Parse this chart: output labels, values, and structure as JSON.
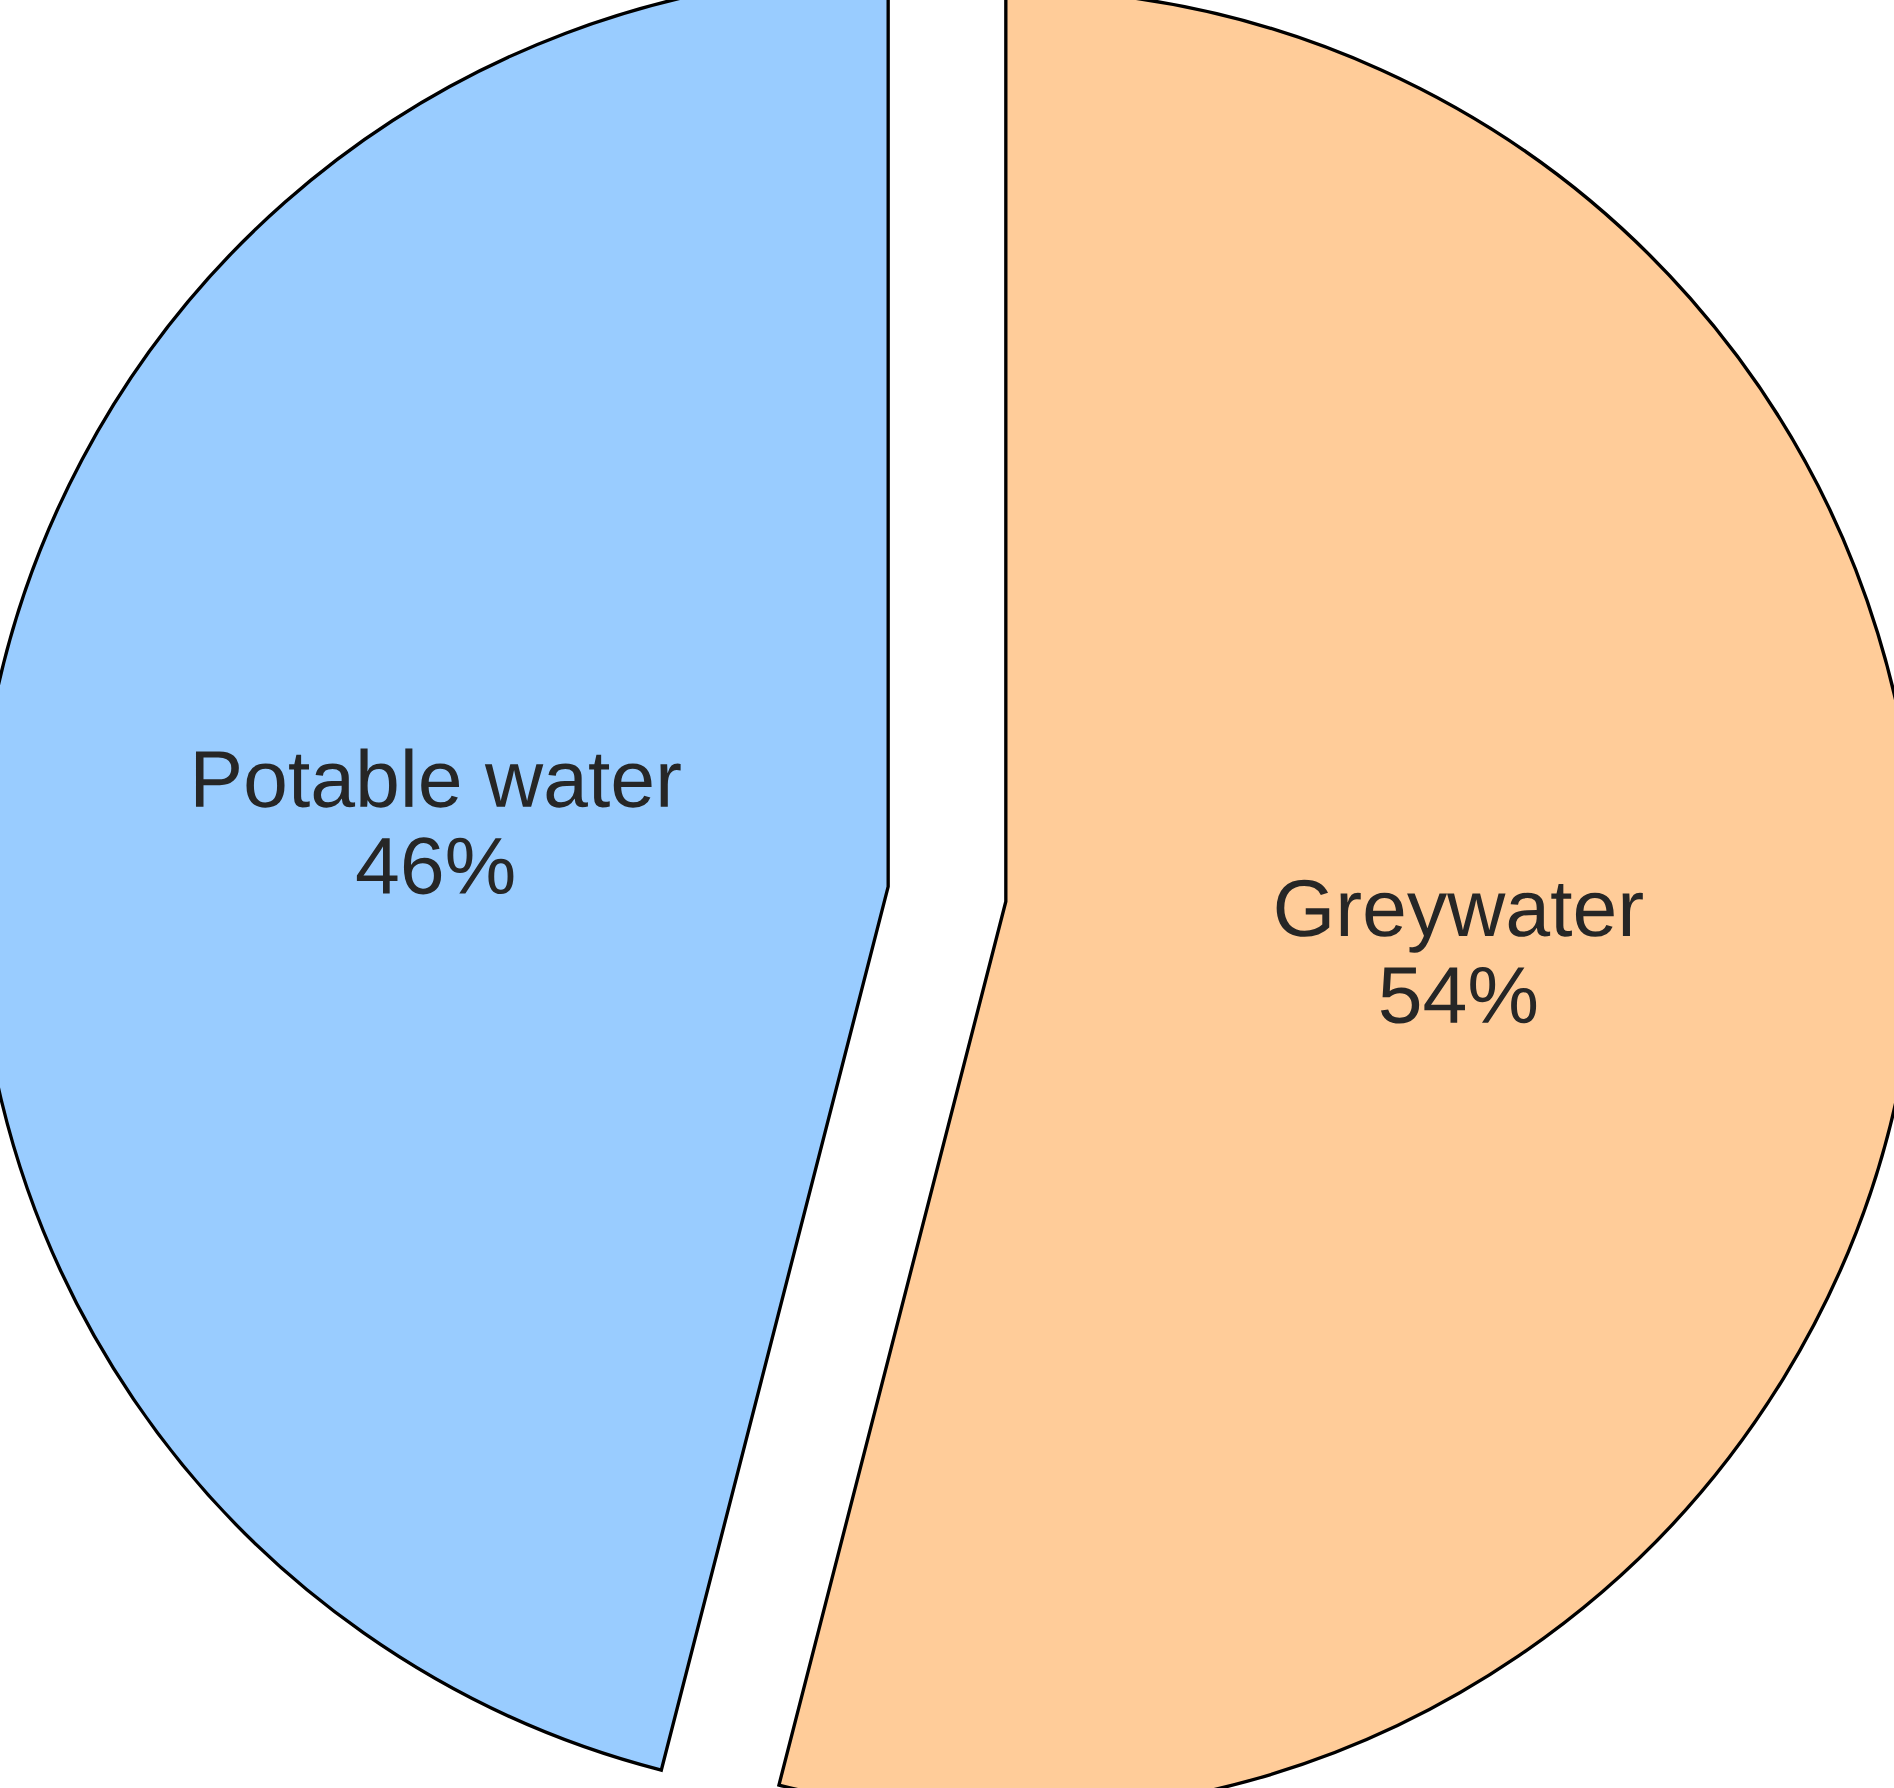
{
  "chart_data": {
    "type": "pie",
    "categories": [
      "Greywater",
      "Potable water"
    ],
    "values": [
      54,
      46
    ],
    "value_labels": [
      "54%",
      "46%"
    ],
    "colors": [
      "#ffcc99",
      "#99ccff"
    ]
  }
}
